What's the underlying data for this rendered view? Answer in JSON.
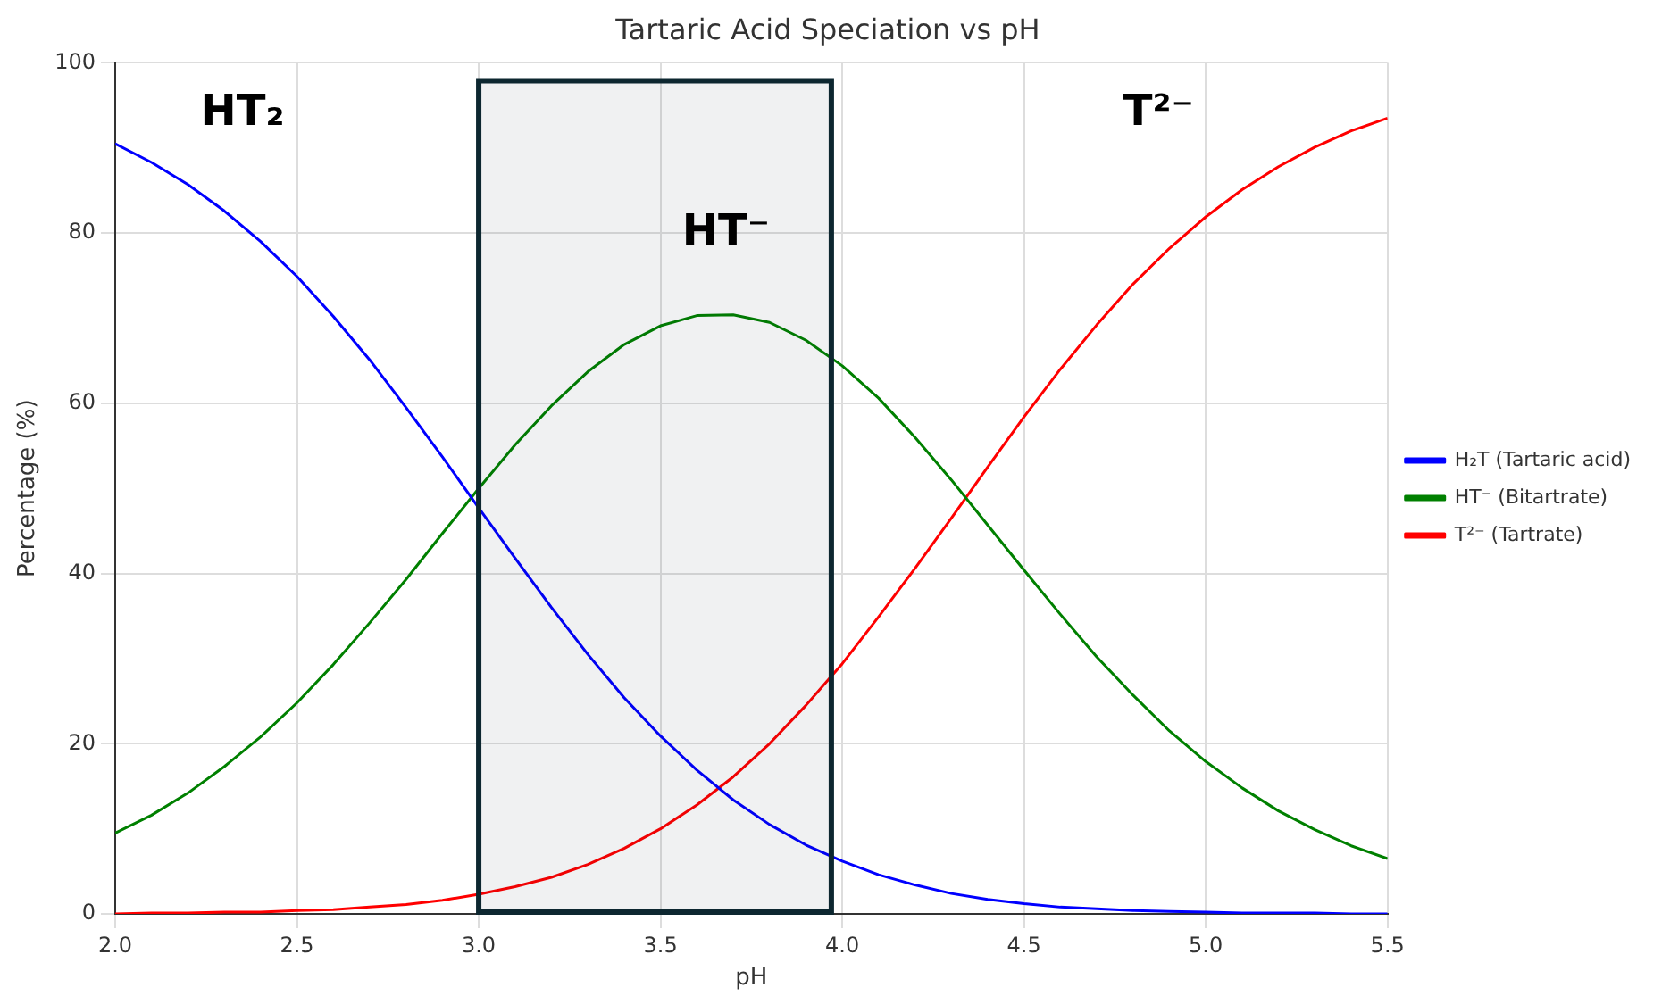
{
  "chart_data": {
    "type": "line",
    "title": "Tartaric Acid Speciation vs pH",
    "xlabel": "pH",
    "ylabel": "Percentage (%)",
    "x": [
      2.0,
      2.1,
      2.2,
      2.3,
      2.4,
      2.5,
      2.6,
      2.7,
      2.8,
      2.9,
      3.0,
      3.1,
      3.2,
      3.3,
      3.4,
      3.5,
      3.6,
      3.7,
      3.8,
      3.9,
      4.0,
      4.1,
      4.2,
      4.3,
      4.4,
      4.5,
      4.6,
      4.7,
      4.8,
      4.9,
      5.0,
      5.1,
      5.2,
      5.3,
      5.4,
      5.5
    ],
    "series": [
      {
        "name": "H₂T (Tartaric acid)",
        "color": "#0000ff",
        "values": [
          90.5,
          88.3,
          85.7,
          82.6,
          79.0,
          74.9,
          70.2,
          65.1,
          59.5,
          53.7,
          47.7,
          41.8,
          36.0,
          30.5,
          25.4,
          20.9,
          16.9,
          13.4,
          10.5,
          8.1,
          6.2,
          4.6,
          3.4,
          2.4,
          1.7,
          1.2,
          0.8,
          0.6,
          0.4,
          0.3,
          0.2,
          0.1,
          0.1,
          0.1,
          0.0,
          0.0
        ]
      },
      {
        "name": "HT⁻ (Bitartrate)",
        "color": "#008000",
        "values": [
          9.5,
          11.6,
          14.2,
          17.3,
          20.8,
          24.8,
          29.3,
          34.2,
          39.3,
          44.7,
          50.0,
          55.1,
          59.7,
          63.7,
          66.9,
          69.1,
          70.3,
          70.4,
          69.5,
          67.4,
          64.4,
          60.6,
          56.0,
          51.0,
          45.7,
          40.4,
          35.2,
          30.2,
          25.7,
          21.5,
          17.9,
          14.8,
          12.1,
          9.9,
          8.0,
          6.5
        ]
      },
      {
        "name": "T²⁻ (Tartrate)",
        "color": "#ff0000",
        "values": [
          0.0,
          0.1,
          0.1,
          0.2,
          0.2,
          0.4,
          0.5,
          0.8,
          1.1,
          1.6,
          2.3,
          3.2,
          4.3,
          5.8,
          7.7,
          10.0,
          12.8,
          16.1,
          20.0,
          24.5,
          29.4,
          34.9,
          40.6,
          46.5,
          52.5,
          58.4,
          64.0,
          69.2,
          74.0,
          78.2,
          81.9,
          85.1,
          87.8,
          90.1,
          92.0,
          93.5
        ]
      }
    ],
    "xlim": [
      2.0,
      5.5
    ],
    "xticks": [
      {
        "value": 2.0,
        "label": "2.0"
      },
      {
        "value": 2.5,
        "label": "2.5"
      },
      {
        "value": 3.0,
        "label": "3.0"
      },
      {
        "value": 3.5,
        "label": "3.5"
      },
      {
        "value": 4.0,
        "label": "4.0"
      },
      {
        "value": 4.5,
        "label": "4.5"
      },
      {
        "value": 5.0,
        "label": "5.0"
      },
      {
        "value": 5.5,
        "label": "5.5"
      }
    ],
    "ylim": [
      0,
      100
    ],
    "yticks": [
      0,
      20,
      40,
      60,
      80,
      100
    ],
    "bands": [
      {
        "axis": "x",
        "from": 3.0,
        "to": 3.97,
        "color": "#0d2730"
      }
    ],
    "annotations": [
      "HT₂",
      "HT⁻",
      "T²⁻"
    ],
    "grid": true,
    "legend": "center right",
    "marker": "none",
    "line_style": "solid"
  }
}
